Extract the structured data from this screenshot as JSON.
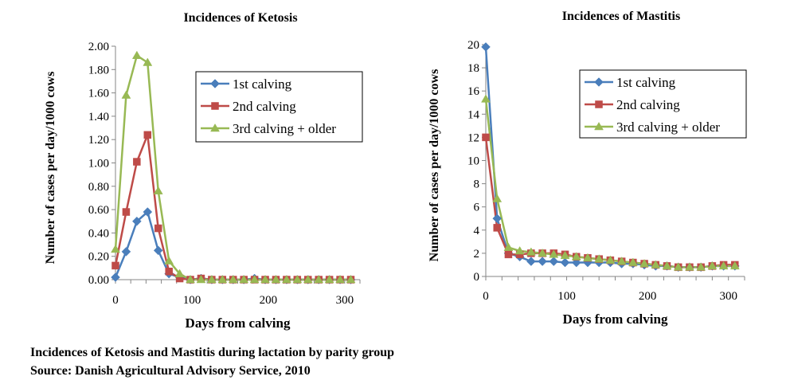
{
  "chart_data": [
    {
      "type": "line",
      "title": "Incidences of Ketosis",
      "xlabel": "Days from calving",
      "ylabel": "Number of cases per day/1000 cows",
      "xlim": [
        0,
        320
      ],
      "ylim": [
        0,
        2
      ],
      "xticks": [
        "0",
        "100",
        "200",
        "300"
      ],
      "yticks": [
        "0.00",
        "0.20",
        "0.40",
        "0.60",
        "0.80",
        "1.00",
        "1.20",
        "1.40",
        "1.60",
        "1.80",
        "2.00"
      ],
      "legend_position": "top-right",
      "x": [
        0,
        14,
        28,
        42,
        56,
        70,
        84,
        98,
        112,
        126,
        140,
        154,
        168,
        182,
        196,
        210,
        224,
        238,
        252,
        266,
        280,
        294,
        308
      ],
      "series": [
        {
          "name": "1st calving",
          "color": "#4A7EBB",
          "marker": "diamond",
          "values": [
            0.02,
            0.24,
            0.5,
            0.58,
            0.25,
            0.05,
            0.02,
            0,
            0.01,
            0,
            0,
            0,
            0,
            0.01,
            0,
            0,
            0,
            0,
            0,
            0,
            0,
            0,
            0
          ]
        },
        {
          "name": "2nd calving",
          "color": "#BE4B48",
          "marker": "square",
          "values": [
            0.12,
            0.58,
            1.01,
            1.24,
            0.44,
            0.07,
            0.01,
            0,
            0.01,
            0,
            0,
            0,
            0,
            0,
            0,
            0,
            0,
            0,
            0,
            0,
            0,
            0,
            0
          ]
        },
        {
          "name": "3rd calving + older",
          "color": "#98B954",
          "marker": "triangle",
          "values": [
            0.26,
            1.58,
            1.92,
            1.86,
            0.76,
            0.16,
            0.05,
            0,
            0,
            0,
            0,
            0,
            0,
            0,
            0,
            0,
            0,
            0,
            0,
            0,
            0,
            0,
            0
          ]
        }
      ]
    },
    {
      "type": "line",
      "title": "Incidences of Mastitis",
      "xlabel": "Days from calving",
      "ylabel": "Number of cases per day/1000 cows",
      "xlim": [
        0,
        320
      ],
      "ylim": [
        0,
        20
      ],
      "xticks": [
        "0",
        "100",
        "200",
        "300"
      ],
      "yticks": [
        "0",
        "2",
        "4",
        "6",
        "8",
        "10",
        "12",
        "14",
        "16",
        "18",
        "20"
      ],
      "legend_position": "top-right",
      "x": [
        0,
        14,
        28,
        42,
        56,
        70,
        84,
        98,
        112,
        126,
        140,
        154,
        168,
        182,
        196,
        210,
        224,
        238,
        252,
        266,
        280,
        294,
        308
      ],
      "series": [
        {
          "name": "1st calving",
          "color": "#4A7EBB",
          "marker": "diamond",
          "values": [
            19.8,
            5.0,
            2.0,
            1.7,
            1.3,
            1.3,
            1.3,
            1.2,
            1.2,
            1.2,
            1.2,
            1.2,
            1.1,
            1.1,
            1.0,
            0.9,
            0.9,
            0.8,
            0.8,
            0.8,
            0.9,
            0.9,
            0.9
          ]
        },
        {
          "name": "2nd calving",
          "color": "#BE4B48",
          "marker": "square",
          "values": [
            12.0,
            4.2,
            1.9,
            1.9,
            2.0,
            2.0,
            2.0,
            1.9,
            1.7,
            1.6,
            1.5,
            1.4,
            1.3,
            1.2,
            1.1,
            1.0,
            0.9,
            0.8,
            0.8,
            0.8,
            0.9,
            1.0,
            1.0
          ]
        },
        {
          "name": "3rd calving + older",
          "color": "#98B954",
          "marker": "triangle",
          "values": [
            15.3,
            6.7,
            2.5,
            2.2,
            2.1,
            2.0,
            1.9,
            1.8,
            1.7,
            1.6,
            1.5,
            1.4,
            1.3,
            1.2,
            1.1,
            1.0,
            0.9,
            0.8,
            0.8,
            0.8,
            0.9,
            0.9,
            0.9
          ]
        }
      ]
    }
  ],
  "caption": {
    "line1": "Incidences of Ketosis and Mastitis during lactation by parity group",
    "line2": "Source: Danish Agricultural Advisory Service, 2010"
  }
}
